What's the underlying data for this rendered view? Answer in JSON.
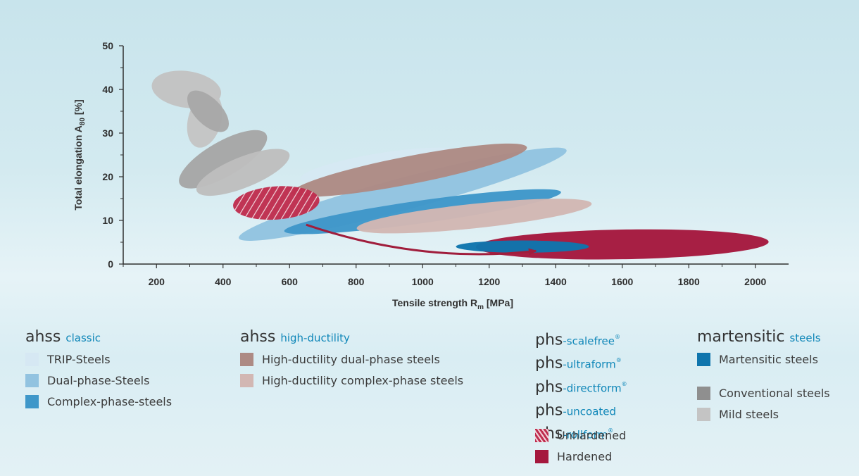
{
  "chart_data": {
    "type": "area",
    "xlabel_main": "Tensile strength R",
    "xlabel_sub": "m",
    "xlabel_unit": " [MPa]",
    "ylabel_main": "Total elongation A",
    "ylabel_sub": "80",
    "ylabel_unit": " [%]",
    "xlim": [
      100,
      2100
    ],
    "ylim": [
      0,
      50
    ],
    "xticks": [
      200,
      400,
      600,
      800,
      1000,
      1200,
      1400,
      1600,
      1800,
      2000
    ],
    "yticks": [
      0,
      10,
      20,
      30,
      40,
      50
    ],
    "regions": [
      {
        "name": "Mild steels",
        "color": "#c2c2c2",
        "cx": 290,
        "cy": 40,
        "rx": 55,
        "ry": 8,
        "angle": -82
      },
      {
        "name": "Mild steels",
        "color": "#c4c4c4",
        "cx": 345,
        "cy": 33,
        "rx": 85,
        "ry": 3.8,
        "angle": -75
      },
      {
        "name": "Conventional steels",
        "color": "#a8a8a8",
        "cx": 355,
        "cy": 35,
        "rx": 40,
        "ry": 6,
        "angle": -45
      },
      {
        "name": "Conventional steels",
        "color": "#a6a6a6",
        "cx": 400,
        "cy": 24,
        "rx": 150,
        "ry": 4,
        "angle": -30
      },
      {
        "name": "Mild steels",
        "color": "#bebebe",
        "cx": 460,
        "cy": 21,
        "rx": 150,
        "ry": 3.5,
        "angle": -22
      },
      {
        "name": "Dual-phase-Steels",
        "color": "#92c3e0",
        "cx": 940,
        "cy": 16,
        "rx": 510,
        "ry": 3.7,
        "angle": -15
      },
      {
        "name": "Complex-phase-steels",
        "color": "#3f97c9",
        "cx": 1000,
        "cy": 12,
        "rx": 420,
        "ry": 2.6,
        "angle": -8
      },
      {
        "name": "TRIP-Steels",
        "color": "#d6e8f3",
        "cx": 880,
        "cy": 22.5,
        "rx": 250,
        "ry": 3,
        "angle": -9
      },
      {
        "name": "High-ductility dual-phase steels",
        "color": "#ad8a84",
        "cx": 960,
        "cy": 21.5,
        "rx": 360,
        "ry": 3.2,
        "angle": -11
      },
      {
        "name": "Hardened",
        "color": "#a5183e",
        "cx": 1600,
        "cy": 4.5,
        "rx": 440,
        "ry": 3.4,
        "angle": -1
      },
      {
        "name": "Martensitic steels",
        "color": "#0f75ad",
        "cx": 1300,
        "cy": 4,
        "rx": 200,
        "ry": 1.4,
        "angle": 0
      },
      {
        "name": "High-ductility complex-phase steels",
        "color": "#d2b7b3",
        "cx": 1155,
        "cy": 11,
        "rx": 355,
        "ry": 2.8,
        "angle": -6
      },
      {
        "name": "Unhardened",
        "color": "#bf2e4f",
        "pattern": "hatch",
        "cx": 560,
        "cy": 14,
        "rx": 130,
        "ry": 3.8,
        "angle": -4
      }
    ],
    "arrow": {
      "color": "#a01d3c",
      "from": [
        650,
        9
      ],
      "via": [
        1000,
        0
      ],
      "to": [
        1340,
        3
      ]
    }
  },
  "legend": {
    "ahss_classic": {
      "title_main": "ahss",
      "title_accent": "classic",
      "items": [
        {
          "label": "TRIP-Steels",
          "color": "#d6e8f3"
        },
        {
          "label": "Dual-phase-Steels",
          "color": "#92c3e0"
        },
        {
          "label": "Complex-phase-steels",
          "color": "#3f97c9"
        }
      ]
    },
    "ahss_high_ductility": {
      "title_main": "ahss",
      "title_accent": "high-ductility",
      "items": [
        {
          "label": "High-ductility dual-phase steels",
          "color": "#ad8a84"
        },
        {
          "label": "High-ductility complex-phase steels",
          "color": "#d2b7b3"
        }
      ]
    },
    "phs": {
      "lines": [
        {
          "main": "phs",
          "accent": "-scalefree",
          "reg": "®"
        },
        {
          "main": "phs",
          "accent": "-ultraform",
          "reg": "®"
        },
        {
          "main": "phs",
          "accent": "-directform",
          "reg": "®"
        },
        {
          "main": "phs",
          "accent": "-uncoated",
          "reg": ""
        },
        {
          "main": "phs",
          "accent": "-rollform",
          "reg": "®"
        }
      ],
      "items": [
        {
          "label": "Unhardened",
          "color": "#bf2e4f",
          "pattern": "hatch"
        },
        {
          "label": "Hardened",
          "color": "#a5183e"
        }
      ]
    },
    "martensitic": {
      "title_main": "martensitic",
      "title_accent": "steels",
      "items": [
        {
          "label": "Martensitic steels",
          "color": "#0f75ad"
        }
      ]
    },
    "other": {
      "items": [
        {
          "label": "Conventional steels",
          "color": "#8f8f8f"
        },
        {
          "label": "Mild steels",
          "color": "#c4c4c4"
        }
      ]
    }
  }
}
